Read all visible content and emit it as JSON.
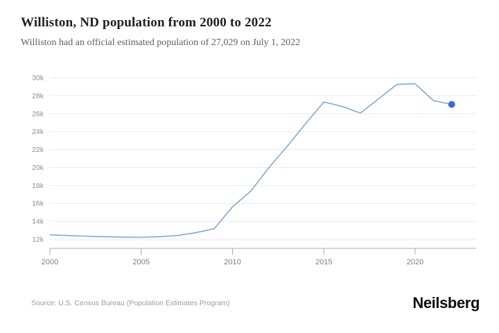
{
  "header": {
    "title": "Williston, ND population from 2000 to 2022",
    "subtitle": "Williston had an official estimated population of 27,029 on July 1, 2022"
  },
  "footer": {
    "source": "Source: U.S. Census Bureau (Population Estimates Program)",
    "brand": "Neilsberg"
  },
  "chart_data": {
    "type": "line",
    "title": "Williston, ND population from 2000 to 2022",
    "xlabel": "",
    "ylabel": "",
    "x": [
      2000,
      2001,
      2002,
      2003,
      2004,
      2005,
      2006,
      2007,
      2008,
      2009,
      2010,
      2011,
      2012,
      2013,
      2014,
      2015,
      2016,
      2017,
      2018,
      2019,
      2020,
      2021,
      2022
    ],
    "series": [
      {
        "name": "Population",
        "values": [
          12500,
          12420,
          12350,
          12290,
          12250,
          12230,
          12290,
          12430,
          12750,
          13180,
          15620,
          17380,
          20000,
          22380,
          24880,
          27300,
          26800,
          26060,
          27650,
          29250,
          29330,
          27450,
          27029
        ]
      }
    ],
    "xticks": [
      2000,
      2005,
      2010,
      2015,
      2020
    ],
    "yticks": [
      12000,
      14000,
      16000,
      18000,
      20000,
      22000,
      24000,
      26000,
      28000,
      30000
    ],
    "ytick_labels": [
      "12k",
      "14k",
      "16k",
      "18k",
      "20k",
      "22k",
      "24k",
      "26k",
      "28k",
      "30k"
    ],
    "xlim": [
      2000,
      2023.4
    ],
    "ylim": [
      12000,
      30000
    ],
    "grid": "horizontal",
    "legend": "none",
    "last_point_value": 27029,
    "colors": {
      "line": "#82a7d4",
      "end_dot": "#3a6fd8",
      "gridline": "#ebebeb",
      "axis": "#ababab",
      "ytick_text": "#8e8e8e",
      "xtick_text": "#7f7f7f"
    }
  }
}
